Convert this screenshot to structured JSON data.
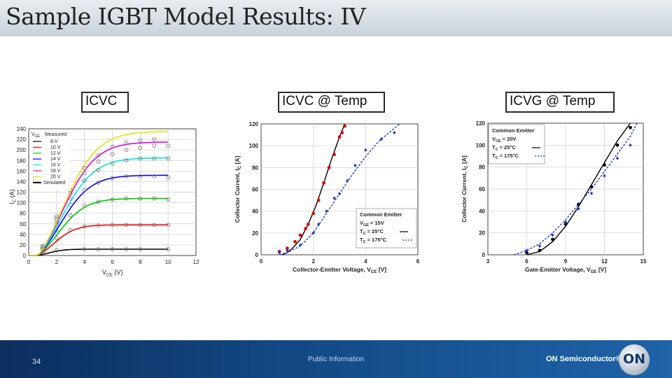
{
  "title": "Sample IGBT Model Results: IV",
  "labels": {
    "left": "ICVC",
    "middle": "ICVC @ Temp",
    "right": "ICVG @ Temp"
  },
  "footer": {
    "page_number": "34",
    "public_info": "Public Information",
    "brand": "ON Semiconductor®",
    "logo_text": "ON"
  },
  "chart_data": [
    {
      "type": "line",
      "xlabel": "V_CE (V)",
      "ylabel": "I_C (A)",
      "xlim": [
        0,
        12
      ],
      "ylim": [
        0,
        240
      ],
      "xticks": [
        0,
        2,
        4,
        6,
        8,
        10,
        12
      ],
      "yticks": [
        0,
        20,
        40,
        60,
        80,
        100,
        120,
        140,
        160,
        180,
        200,
        220,
        240
      ],
      "grid": true,
      "legend": {
        "title": "V_GE  Measured",
        "position": "top-left",
        "simulated_label": "Simulated"
      },
      "series": [
        {
          "name": "8 V",
          "color": "#000000",
          "sat": 12,
          "knee": 1.6,
          "measured": [
            [
              2,
              10
            ],
            [
              4,
              12
            ],
            [
              5,
              12
            ],
            [
              6,
              12
            ],
            [
              7,
              12
            ],
            [
              8,
              12
            ],
            [
              10,
              12
            ]
          ]
        },
        {
          "name": "10 V",
          "color": "#ff0000",
          "sat": 58,
          "knee": 2.3,
          "measured": [
            [
              1,
              6
            ],
            [
              2,
              33
            ],
            [
              3,
              48
            ],
            [
              4,
              55
            ],
            [
              5,
              57
            ],
            [
              6,
              58
            ],
            [
              7,
              58
            ],
            [
              8,
              58
            ],
            [
              9,
              58
            ],
            [
              10,
              58
            ]
          ]
        },
        {
          "name": "12 V",
          "color": "#00cc00",
          "sat": 108,
          "knee": 2.9,
          "measured": [
            [
              1,
              10
            ],
            [
              2,
              48
            ],
            [
              3,
              76
            ],
            [
              4,
              94
            ],
            [
              5,
              102
            ],
            [
              6,
              106
            ],
            [
              7,
              108
            ],
            [
              8,
              108
            ],
            [
              9,
              108
            ],
            [
              10,
              106
            ]
          ]
        },
        {
          "name": "14 V",
          "color": "#0000ff",
          "sat": 152,
          "knee": 3.2,
          "measured": [
            [
              1,
              12
            ],
            [
              2,
              58
            ],
            [
              3,
              96
            ],
            [
              4,
              124
            ],
            [
              5,
              138
            ],
            [
              6,
              146
            ],
            [
              7,
              150
            ],
            [
              8,
              150
            ],
            [
              9,
              150
            ],
            [
              10,
              148
            ]
          ]
        },
        {
          "name": "16 V",
          "color": "#00e5e5",
          "sat": 185,
          "knee": 3.4,
          "measured": [
            [
              1,
              14
            ],
            [
              2,
              64
            ],
            [
              3,
              108
            ],
            [
              4,
              142
            ],
            [
              5,
              162
            ],
            [
              6,
              174
            ],
            [
              7,
              180
            ],
            [
              8,
              184
            ],
            [
              9,
              184
            ],
            [
              10,
              184
            ]
          ]
        },
        {
          "name": "18 V",
          "color": "#e000e0",
          "sat": 215,
          "knee": 3.5,
          "measured": [
            [
              1,
              16
            ],
            [
              2,
              70
            ],
            [
              3,
              118
            ],
            [
              4,
              156
            ],
            [
              5,
              178
            ],
            [
              6,
              192
            ],
            [
              7,
              200
            ],
            [
              8,
              204
            ],
            [
              9,
              208
            ],
            [
              10,
              208
            ]
          ]
        },
        {
          "name": "20 V",
          "color": "#f0e000",
          "sat": 235,
          "knee": 3.6,
          "measured": [
            [
              1,
              18
            ],
            [
              2,
              74
            ],
            [
              3,
              124
            ],
            [
              4,
              166
            ],
            [
              5,
              190
            ],
            [
              6,
              206
            ],
            [
              7,
              214
            ],
            [
              8,
              218
            ],
            [
              9,
              220
            ]
          ]
        }
      ]
    },
    {
      "type": "line",
      "xlabel": "Collector-Emitter Voltage, V_CE [V]",
      "ylabel": "Collector Current, I_C [A]",
      "xlim": [
        0,
        6
      ],
      "ylim": [
        0,
        120
      ],
      "xticks": [
        0,
        2,
        4,
        6
      ],
      "yticks": [
        0,
        20,
        40,
        60,
        80,
        100,
        120
      ],
      "grid": true,
      "legend": {
        "lines": [
          "Common Emitter",
          "V_GE = 15V",
          "T_C = 25°C",
          "T_C = 175°C"
        ],
        "position": "bottom-right"
      },
      "series": [
        {
          "name": "T_C = 25°C",
          "color": "#dd0000",
          "style": "solid",
          "line": [
            [
              0.8,
              0
            ],
            [
              1.0,
              2
            ],
            [
              1.2,
              6
            ],
            [
              1.5,
              14
            ],
            [
              1.8,
              28
            ],
            [
              2.1,
              45
            ],
            [
              2.4,
              66
            ],
            [
              2.7,
              88
            ],
            [
              3.0,
              108
            ],
            [
              3.2,
              120
            ]
          ],
          "measured": [
            [
              0.7,
              3
            ],
            [
              1.0,
              6
            ],
            [
              1.3,
              12
            ],
            [
              1.5,
              18
            ],
            [
              1.7,
              24
            ],
            [
              1.8,
              28
            ],
            [
              2.0,
              38
            ],
            [
              2.2,
              50
            ],
            [
              2.4,
              66
            ],
            [
              2.6,
              80
            ],
            [
              2.8,
              92
            ],
            [
              3.0,
              108
            ],
            [
              3.1,
              112
            ],
            [
              3.2,
              118
            ]
          ]
        },
        {
          "name": "T_C = 175°C",
          "color": "#2040c0",
          "style": "dashed",
          "line": [
            [
              0.7,
              0
            ],
            [
              1.0,
              2
            ],
            [
              1.5,
              8
            ],
            [
              2.0,
              20
            ],
            [
              2.5,
              38
            ],
            [
              3.0,
              56
            ],
            [
              3.5,
              74
            ],
            [
              4.0,
              90
            ],
            [
              4.5,
              104
            ],
            [
              5.0,
              114
            ],
            [
              5.3,
              120
            ]
          ],
          "measured": [
            [
              0.7,
              2
            ],
            [
              1.0,
              4
            ],
            [
              1.5,
              9
            ],
            [
              2.0,
              20
            ],
            [
              2.2,
              28
            ],
            [
              2.5,
              40
            ],
            [
              2.8,
              52
            ],
            [
              3.0,
              56
            ],
            [
              3.3,
              68
            ],
            [
              3.6,
              82
            ],
            [
              4.0,
              96
            ],
            [
              4.6,
              106
            ],
            [
              5.1,
              112
            ]
          ]
        }
      ]
    },
    {
      "type": "line",
      "xlabel": "Gate-Emitter Voltage, V_GE [V]",
      "ylabel": "Collector Current, I_C [A]",
      "xlim": [
        3,
        15
      ],
      "ylim": [
        0,
        120
      ],
      "xticks": [
        3,
        6,
        9,
        12,
        15
      ],
      "yticks": [
        0,
        20,
        40,
        60,
        80,
        100,
        120
      ],
      "grid": true,
      "legend": {
        "lines": [
          "Common Emitter",
          "V_CE = 20V",
          "T_C = 25°C",
          "T_C = 175°C"
        ],
        "position": "top-left"
      },
      "series": [
        {
          "name": "T_C = 25°C",
          "color": "#000000",
          "style": "solid",
          "line": [
            [
              6.0,
              0
            ],
            [
              7.0,
              3
            ],
            [
              8.0,
              12
            ],
            [
              9.0,
              26
            ],
            [
              10.0,
              44
            ],
            [
              11.0,
              64
            ],
            [
              12.0,
              84
            ],
            [
              13.0,
              104
            ],
            [
              14.0,
              120
            ]
          ],
          "measured": [
            [
              6.0,
              2
            ],
            [
              7.0,
              4
            ],
            [
              8.0,
              14
            ],
            [
              9.0,
              28
            ],
            [
              10.0,
              46
            ],
            [
              11.0,
              62
            ],
            [
              12.0,
              82
            ],
            [
              13.0,
              100
            ],
            [
              14.0,
              116
            ]
          ]
        },
        {
          "name": "T_C = 175°C",
          "color": "#2040c0",
          "style": "dashed",
          "line": [
            [
              5.0,
              0
            ],
            [
              6.0,
              4
            ],
            [
              7.0,
              10
            ],
            [
              8.0,
              20
            ],
            [
              9.0,
              32
            ],
            [
              10.0,
              46
            ],
            [
              11.0,
              60
            ],
            [
              12.0,
              76
            ],
            [
              13.0,
              92
            ],
            [
              14.0,
              108
            ],
            [
              14.5,
              120
            ]
          ],
          "measured": [
            [
              6.0,
              4
            ],
            [
              7.0,
              8
            ],
            [
              8.0,
              18
            ],
            [
              9.0,
              30
            ],
            [
              10.0,
              42
            ],
            [
              11.0,
              56
            ],
            [
              12.0,
              72
            ],
            [
              13.0,
              88
            ],
            [
              14.0,
              100
            ]
          ]
        }
      ]
    }
  ]
}
